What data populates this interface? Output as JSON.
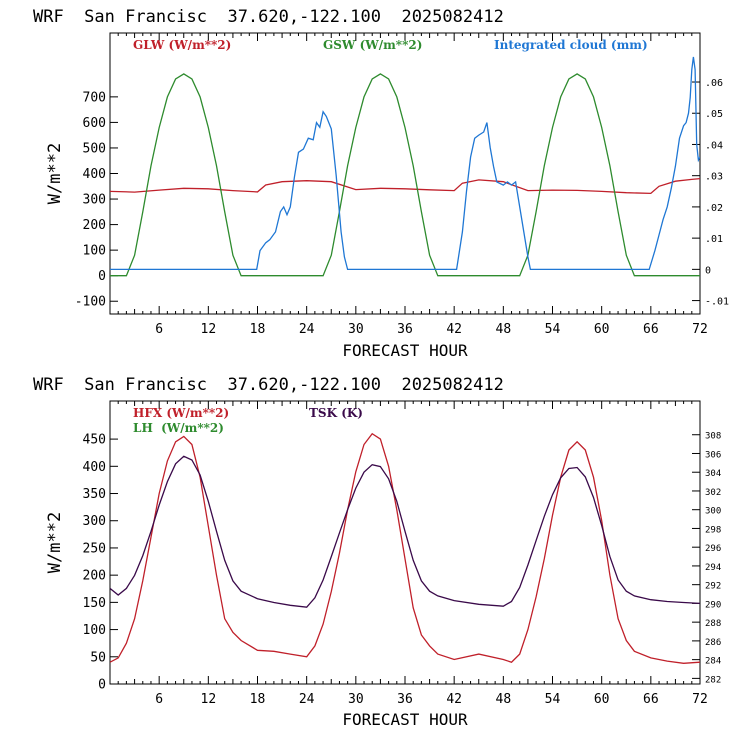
{
  "chart_data": [
    {
      "type": "line",
      "title": "WRF  San Francisc  37.620,-122.100  2025082412",
      "xlabel": "FORECAST HOUR",
      "ylabel": "W/m**2",
      "xlim": [
        0,
        72
      ],
      "ylim": [
        -150,
        950
      ],
      "right_ylim": [
        -0.0143,
        0.0757
      ],
      "x_ticks": [
        6,
        12,
        18,
        24,
        30,
        36,
        42,
        48,
        54,
        60,
        66,
        72
      ],
      "y_ticks": [
        -100,
        0,
        100,
        200,
        300,
        400,
        500,
        600,
        700
      ],
      "right_y_ticks": [
        -0.01,
        0,
        0.01,
        0.02,
        0.03,
        0.04,
        0.05,
        0.06
      ],
      "right_y_tick_labels": [
        "-.01",
        "0",
        ".01",
        ".02",
        ".03",
        ".04",
        ".05",
        ".06"
      ],
      "grid": false,
      "series": [
        {
          "name": "GLW (W/m**2)",
          "color": "#c0202a",
          "axis": "left",
          "x": [
            0,
            3,
            6,
            9,
            12,
            15,
            18,
            19,
            21,
            24,
            27,
            30,
            33,
            36,
            39,
            42,
            43,
            45,
            48,
            51,
            54,
            57,
            60,
            63,
            66,
            67,
            69,
            71,
            72
          ],
          "y": [
            330,
            327,
            335,
            342,
            340,
            333,
            328,
            355,
            368,
            372,
            368,
            337,
            342,
            340,
            336,
            333,
            362,
            375,
            368,
            333,
            335,
            334,
            330,
            325,
            322,
            350,
            370,
            377,
            380
          ]
        },
        {
          "name": "GSW (W/m**2)",
          "color": "#2e8b2e",
          "axis": "left",
          "x": [
            0,
            2,
            3,
            4,
            5,
            6,
            7,
            8,
            9,
            10,
            11,
            12,
            13,
            14,
            15,
            16,
            26,
            27,
            28,
            29,
            30,
            31,
            32,
            33,
            34,
            35,
            36,
            37,
            38,
            39,
            40,
            50,
            51,
            52,
            53,
            54,
            55,
            56,
            57,
            58,
            59,
            60,
            61,
            62,
            63,
            64,
            72
          ],
          "y": [
            0,
            0,
            80,
            250,
            430,
            580,
            700,
            770,
            790,
            770,
            700,
            580,
            430,
            250,
            80,
            0,
            0,
            80,
            250,
            430,
            580,
            700,
            770,
            790,
            770,
            700,
            580,
            430,
            250,
            80,
            0,
            0,
            80,
            250,
            430,
            580,
            700,
            770,
            790,
            770,
            700,
            580,
            430,
            250,
            80,
            0,
            0
          ]
        },
        {
          "name": "Integrated cloud (mm)",
          "color": "#1f77d4",
          "axis": "right",
          "x": [
            0,
            17.9,
            18.3,
            19,
            19.5,
            20.2,
            20.8,
            21.2,
            21.6,
            22,
            22.5,
            23,
            23.6,
            24.2,
            24.8,
            25.2,
            25.6,
            26,
            26.4,
            27,
            27.6,
            28.2,
            28.6,
            29,
            42.3,
            43,
            43.5,
            44,
            44.5,
            45,
            45.6,
            46,
            46.4,
            46.8,
            47.2,
            48,
            48.5,
            49,
            49.5,
            50,
            50.5,
            51,
            51.3,
            65.8,
            66.5,
            67,
            67.5,
            68,
            68.5,
            69,
            69.5,
            70,
            70.3,
            70.6,
            70.8,
            71,
            71.2,
            71.4,
            71.6,
            71.8,
            72
          ],
          "y": [
            0,
            0,
            0.006,
            0.0085,
            0.0095,
            0.012,
            0.0185,
            0.02,
            0.0175,
            0.02,
            0.0295,
            0.0375,
            0.0385,
            0.042,
            0.0415,
            0.047,
            0.0455,
            0.0505,
            0.049,
            0.045,
            0.03,
            0.012,
            0.004,
            0,
            0,
            0.012,
            0.025,
            0.036,
            0.042,
            0.043,
            0.044,
            0.047,
            0.039,
            0.033,
            0.028,
            0.027,
            0.028,
            0.027,
            0.028,
            0.02,
            0.012,
            0.004,
            0,
            0,
            0.006,
            0.011,
            0.016,
            0.02,
            0.026,
            0.033,
            0.042,
            0.046,
            0.047,
            0.05,
            0.055,
            0.064,
            0.068,
            0.064,
            0.04,
            0.035,
            0.036
          ]
        }
      ]
    },
    {
      "type": "line",
      "title": "WRF  San Francisc  37.620,-122.100  2025082412",
      "xlabel": "FORECAST HOUR",
      "ylabel": "W/m**2",
      "xlim": [
        0,
        72
      ],
      "ylim": [
        0,
        520
      ],
      "right_ylim": [
        281.4,
        311.6
      ],
      "x_ticks": [
        6,
        12,
        18,
        24,
        30,
        36,
        42,
        48,
        54,
        60,
        66,
        72
      ],
      "y_ticks": [
        0,
        50,
        100,
        150,
        200,
        250,
        300,
        350,
        400,
        450
      ],
      "right_y_ticks": [
        282,
        284,
        286,
        288,
        290,
        292,
        294,
        296,
        298,
        300,
        302,
        304,
        306,
        308
      ],
      "grid": false,
      "series": [
        {
          "name": "HFX (W/m**2)",
          "color": "#c0202a",
          "axis": "left",
          "x": [
            0,
            1,
            2,
            3,
            4,
            5,
            6,
            7,
            8,
            9,
            10,
            11,
            12,
            13,
            14,
            15,
            16,
            18,
            20,
            22,
            24,
            25,
            26,
            27,
            28,
            29,
            30,
            31,
            32,
            33,
            34,
            35,
            36,
            37,
            38,
            39,
            40,
            42,
            45,
            48,
            49,
            50,
            51,
            52,
            53,
            54,
            55,
            56,
            57,
            58,
            59,
            60,
            61,
            62,
            63,
            64,
            66,
            68,
            70,
            72
          ],
          "y": [
            40,
            48,
            75,
            120,
            190,
            270,
            350,
            410,
            445,
            455,
            440,
            380,
            290,
            200,
            120,
            95,
            80,
            62,
            60,
            55,
            50,
            70,
            110,
            170,
            240,
            320,
            390,
            440,
            460,
            450,
            400,
            320,
            230,
            140,
            90,
            70,
            55,
            45,
            55,
            45,
            40,
            55,
            100,
            160,
            230,
            310,
            380,
            430,
            445,
            430,
            380,
            300,
            200,
            120,
            80,
            60,
            48,
            42,
            38,
            40
          ]
        },
        {
          "name": "LH  (W/m**2)",
          "color": "#2e8b2e",
          "axis": "left",
          "x": [],
          "y": []
        },
        {
          "name": "TSK (K)",
          "color": "#3a0a4a",
          "axis": "right",
          "x": [
            0,
            1,
            2,
            3,
            4,
            5,
            6,
            7,
            8,
            9,
            10,
            11,
            12,
            13,
            14,
            15,
            16,
            18,
            20,
            22,
            24,
            25,
            26,
            27,
            28,
            29,
            30,
            31,
            32,
            33,
            34,
            35,
            36,
            37,
            38,
            39,
            40,
            42,
            45,
            48,
            49,
            50,
            51,
            52,
            53,
            54,
            55,
            56,
            57,
            58,
            59,
            60,
            61,
            62,
            63,
            64,
            66,
            68,
            70,
            72
          ],
          "y": [
            291.6,
            290.9,
            291.6,
            293,
            295.1,
            297.7,
            300.5,
            303,
            304.9,
            305.7,
            305.3,
            303.7,
            300.9,
            297.7,
            294.6,
            292.4,
            291.3,
            290.5,
            290.1,
            289.8,
            289.6,
            290.6,
            292.5,
            295,
            297.5,
            300,
            302.3,
            304,
            304.8,
            304.6,
            303.3,
            300.9,
            297.7,
            294.6,
            292.4,
            291.3,
            290.8,
            290.3,
            289.9,
            289.7,
            290.2,
            291.7,
            294.1,
            296.7,
            299.3,
            301.6,
            303.4,
            304.4,
            304.5,
            303.5,
            301.3,
            298.3,
            295,
            292.5,
            291.3,
            290.8,
            290.4,
            290.2,
            290.1,
            290
          ]
        }
      ]
    }
  ]
}
